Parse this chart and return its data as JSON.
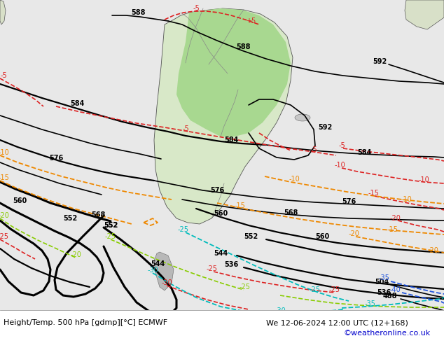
{
  "title_left": "Height/Temp. 500 hPa [gdmp][°C] ECMWF",
  "title_right": "We 12-06-2024 12:00 UTC (12+168)",
  "credit": "©weatheronline.co.uk",
  "ocean_color": "#e8e8e8",
  "land_color": "#f0f0f0",
  "green_color": "#b8e8a0",
  "gray_land_color": "#c0c0c0",
  "bottom_bar_color": "#ffffff",
  "credit_color": "#0000cc",
  "title_fontsize": 8,
  "credit_fontsize": 8
}
